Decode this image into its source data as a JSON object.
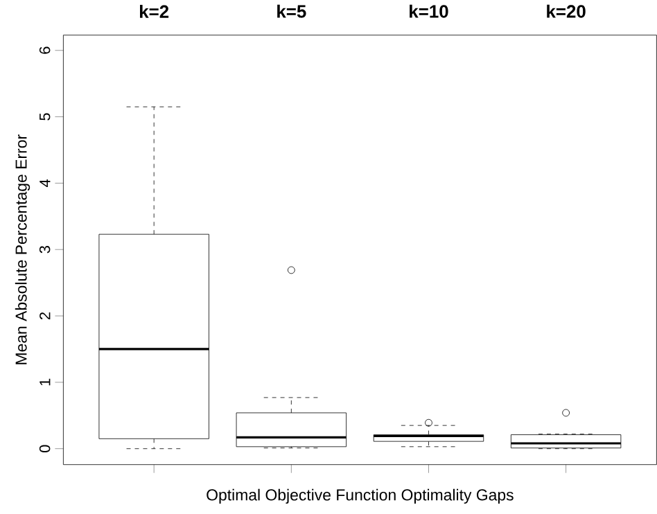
{
  "chart_data": {
    "type": "box",
    "categories": [
      "k=2",
      "k=5",
      "k=10",
      "k=20"
    ],
    "boxes": [
      {
        "low": 0.0,
        "q1": 0.15,
        "median": 1.5,
        "q3": 3.23,
        "high": 5.15
      },
      {
        "low": 0.01,
        "q1": 0.03,
        "median": 0.17,
        "q3": 0.54,
        "high": 0.77,
        "outliers": [
          2.69
        ]
      },
      {
        "low": 0.03,
        "q1": 0.11,
        "median": 0.19,
        "q3": 0.21,
        "high": 0.35,
        "outliers": [
          0.39
        ]
      },
      {
        "low": 0.0,
        "q1": 0.01,
        "median": 0.08,
        "q3": 0.21,
        "high": 0.22,
        "outliers": [
          0.54
        ]
      }
    ],
    "xlabel": "Optimal Objective Function Optimality Gaps",
    "ylabel": "Mean Absolute Percentage Error",
    "ylim": [
      -0.24,
      6.23
    ],
    "yticks": [
      0,
      1,
      2,
      3,
      4,
      5,
      6
    ],
    "grid": false,
    "line_style": "dashed"
  }
}
